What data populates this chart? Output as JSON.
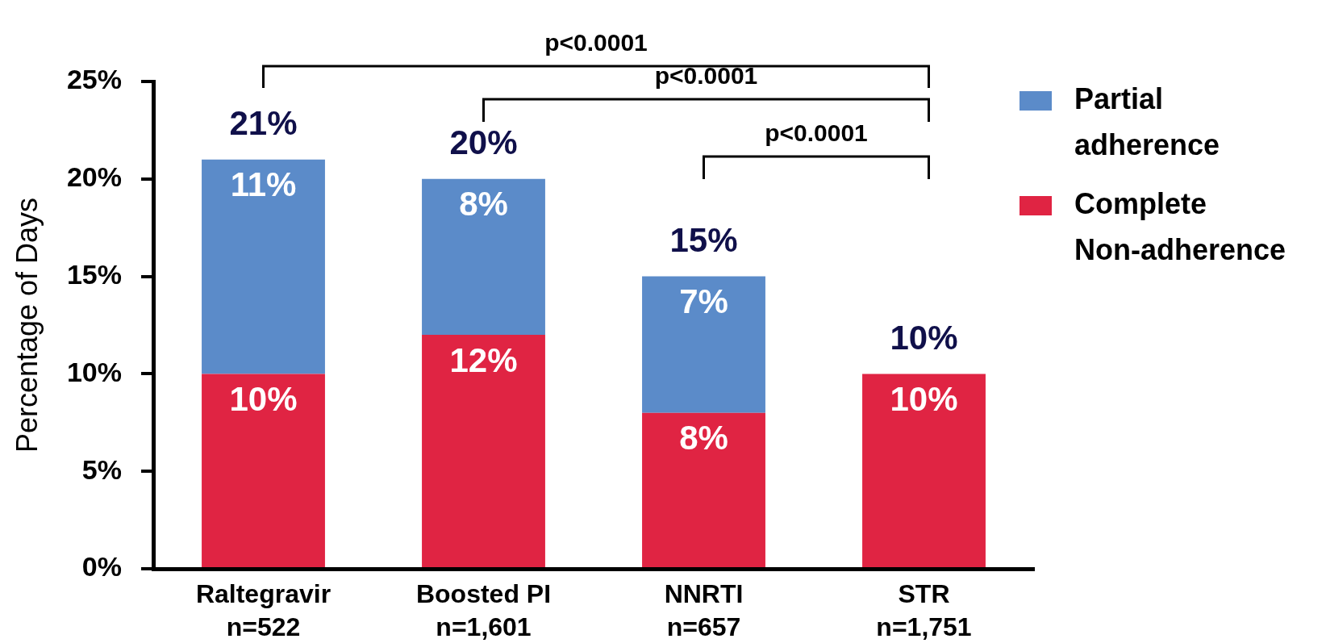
{
  "chart_data": {
    "type": "bar",
    "ylabel": "Percentage of Days",
    "categories": [
      "Raltegravir\nn=522",
      "Boosted PI\nn=1,601",
      "NNRTI\nn=657",
      "STR\nn=1,751"
    ],
    "series": [
      {
        "name": "Complete Non-adherence",
        "color": "#e02443",
        "values": [
          10,
          12,
          8,
          10
        ],
        "value_labels": [
          "10%",
          "12%",
          "8%",
          "10%"
        ]
      },
      {
        "name": "Partial adherence",
        "color": "#5b8bc9",
        "values": [
          11,
          8,
          7,
          null
        ],
        "value_labels": [
          "11%",
          "8%",
          "7%",
          null
        ]
      }
    ],
    "stacked": true,
    "totals": [
      "21%",
      "20%",
      "15%",
      "10%"
    ],
    "ylim": [
      0,
      25
    ],
    "yticks": [
      {
        "value": 0,
        "label": "0%"
      },
      {
        "value": 5,
        "label": "5%"
      },
      {
        "value": 10,
        "label": "10%"
      },
      {
        "value": 15,
        "label": "15%"
      },
      {
        "value": 20,
        "label": "20%"
      },
      {
        "value": 25,
        "label": "25%"
      }
    ],
    "legend": "top right",
    "annotations": [
      "p<0.0001",
      "p<0.0001",
      "p<0.0001"
    ]
  }
}
